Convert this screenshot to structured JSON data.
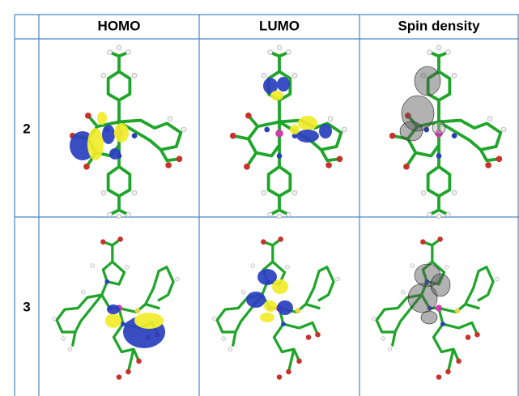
{
  "table": {
    "header": [
      "HOMO",
      "LUMO",
      "Spin density"
    ],
    "rows": [
      {
        "label": "2"
      },
      {
        "label": "3"
      }
    ]
  }
}
